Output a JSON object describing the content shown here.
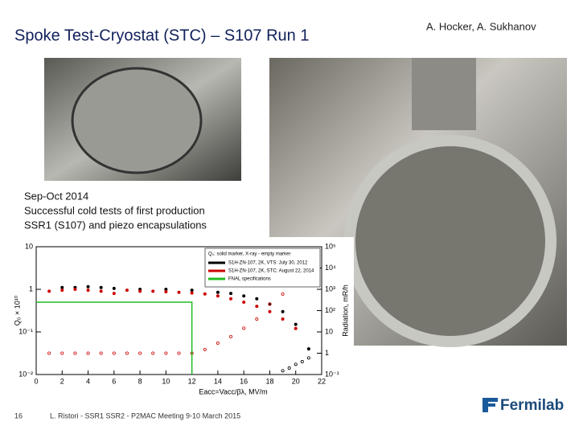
{
  "header": {
    "title": "Spoke Test-Cryostat (STC) – S107 Run 1",
    "authors": "A. Hocker, A. Sukhanov"
  },
  "body": {
    "lines": [
      "Sep-Oct 2014",
      "Successful cold tests of first production",
      "SSR1 (S107) and piezo encapsulations"
    ]
  },
  "footer": {
    "page": "16",
    "citation": "L. Ristori - SSR1 SSR2 - P2MAC Meeting 9-10 March 2015",
    "logo": "Fermilab"
  },
  "chart_data": {
    "type": "scatter",
    "log_y": true,
    "legend_title": "Q₀: solid marker, X-ray - empty marker",
    "xlabel": "Eacc=Vacc/βλ, MV/m",
    "ylabel": "Q₀ × 10¹⁰",
    "y2label": "Radiation, mR/h",
    "xlim": [
      0,
      22
    ],
    "xticks": [
      0,
      2,
      4,
      6,
      8,
      10,
      12,
      14,
      16,
      18,
      20,
      22
    ],
    "ylim": [
      0.01,
      10
    ],
    "yticks": [
      {
        "value": 0.01,
        "label": "10⁻²"
      },
      {
        "value": 0.1,
        "label": "10⁻¹"
      },
      1,
      10
    ],
    "y2lim": [
      0.1,
      100000
    ],
    "y2ticks": [
      {
        "value": 0.1,
        "label": "10⁻¹"
      },
      1,
      10,
      {
        "value": 100,
        "label": "10²"
      },
      {
        "value": 1000,
        "label": "10³"
      },
      {
        "value": 10000,
        "label": "10⁴"
      },
      {
        "value": 100000,
        "label": "10⁵"
      }
    ],
    "series": [
      {
        "name": "S1H-ZN-107, 2K, VTS: July 30, 2012",
        "color": "#000000",
        "x": [
          2,
          3,
          4,
          5,
          6,
          8,
          10,
          12,
          14,
          15,
          16,
          17,
          18,
          19,
          20,
          21
        ],
        "values": [
          1.1,
          1.1,
          1.15,
          1.1,
          1.05,
          1.0,
          1.0,
          0.95,
          0.85,
          0.8,
          0.7,
          0.6,
          0.45,
          0.3,
          0.15,
          0.04
        ],
        "xray_x": [
          19,
          19.5,
          20,
          20.5,
          21
        ],
        "xray_values": [
          0.15,
          0.2,
          0.3,
          0.4,
          0.6
        ]
      },
      {
        "name": "S1H-ZN-107, 2K, STC: August 22, 2014",
        "color": "#cc0000",
        "x": [
          1,
          2,
          3,
          4,
          5,
          6,
          7,
          8,
          9,
          10,
          11,
          12,
          13,
          14,
          15,
          16,
          17,
          18,
          19,
          20
        ],
        "values": [
          0.9,
          0.95,
          1.0,
          0.95,
          0.9,
          0.8,
          0.95,
          0.9,
          0.9,
          0.88,
          0.85,
          0.82,
          0.78,
          0.7,
          0.6,
          0.5,
          0.4,
          0.3,
          0.2,
          0.12
        ],
        "xray_x": [
          1,
          2,
          3,
          4,
          5,
          6,
          7,
          8,
          9,
          10,
          11,
          12,
          13,
          14,
          15,
          16,
          17,
          18,
          19
        ],
        "xray_values": [
          1,
          1,
          1,
          1,
          1,
          1,
          1,
          1,
          1,
          1,
          1,
          1,
          1.5,
          3,
          6,
          15,
          40,
          200,
          600
        ]
      },
      {
        "name": "FNAL specifications",
        "color": "#22bb22",
        "x": [
          0,
          12,
          12
        ],
        "values": [
          0.5,
          0.5,
          0.01
        ],
        "line": true
      }
    ]
  }
}
